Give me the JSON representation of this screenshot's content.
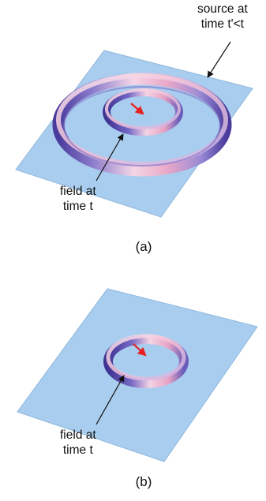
{
  "panel_a": {
    "source_label_line1": "source at",
    "source_label_line2": "time t'<t",
    "field_label_line1": "field at",
    "field_label_line2": "time t",
    "caption": "(a)"
  },
  "panel_b": {
    "field_label_line1": "field at",
    "field_label_line2": "time t",
    "caption": "(b)"
  },
  "colors": {
    "plane": "#a9cdee",
    "plane_edge": "#8fb7dd",
    "ring_pink": "#f2c7dc",
    "ring_purple": "#5a4aa8",
    "arrow": "#e62020"
  }
}
